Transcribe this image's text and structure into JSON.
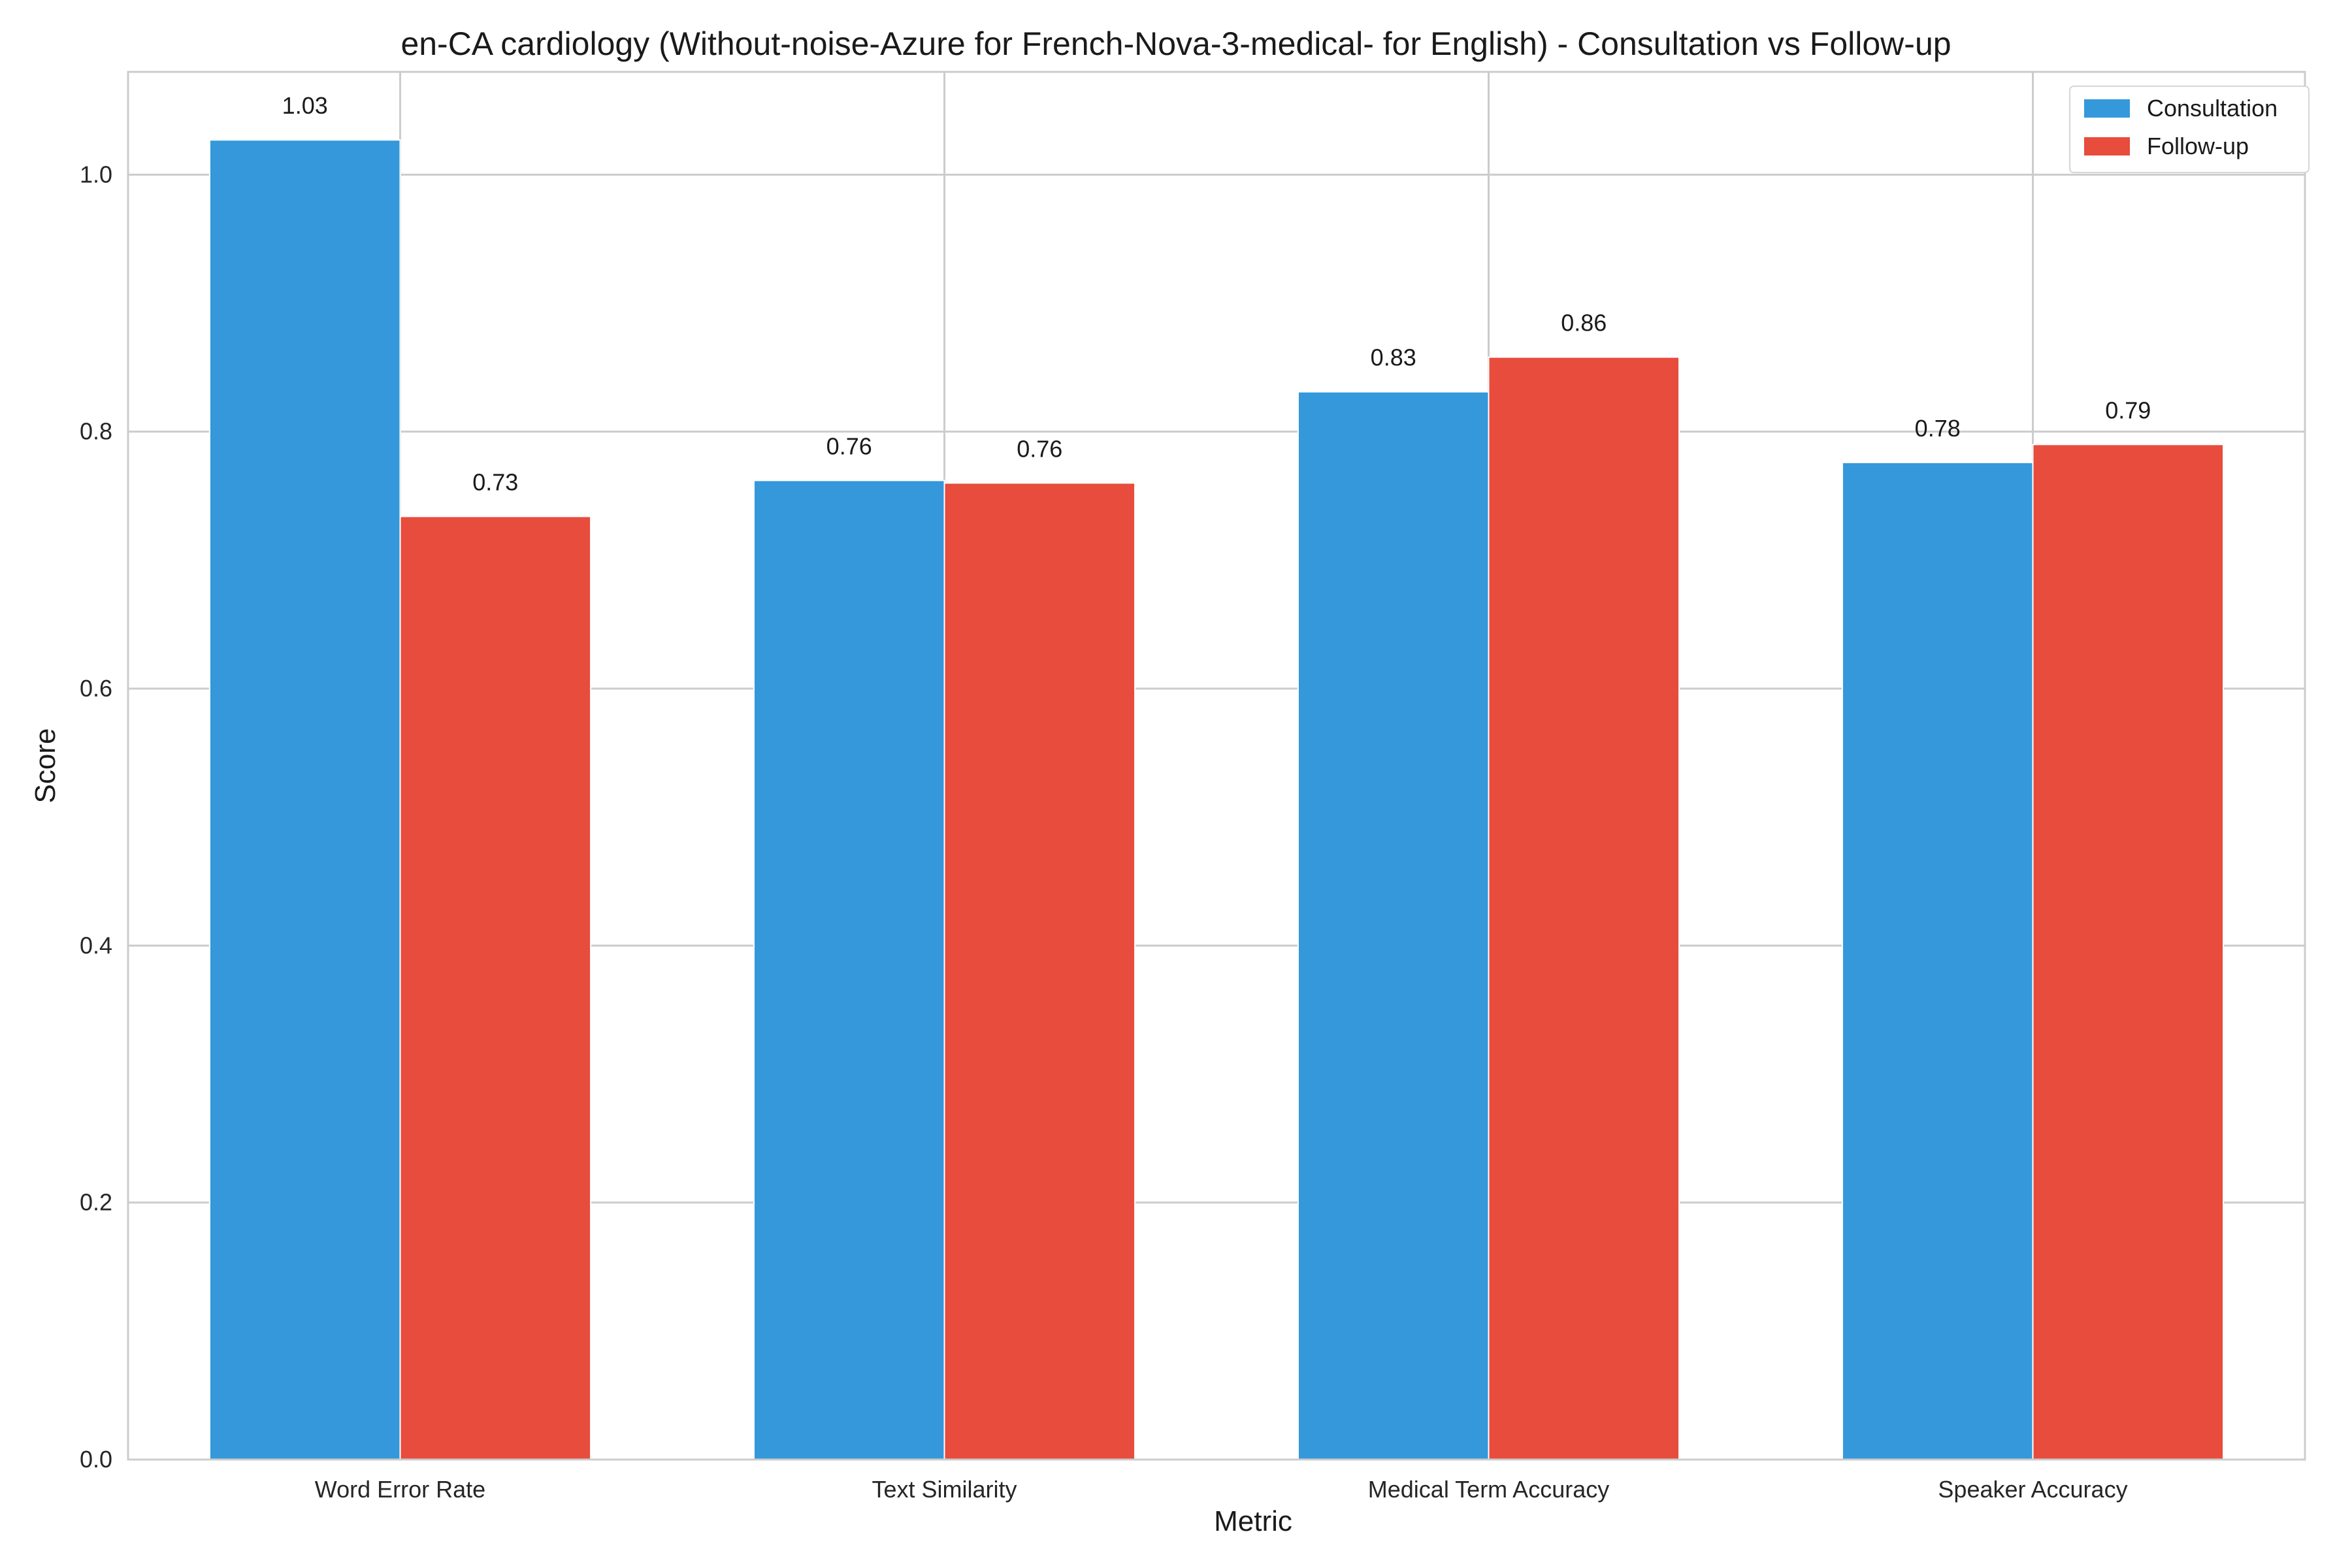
{
  "chart_data": {
    "type": "bar",
    "title": "en-CA cardiology (Without-noise-Azure for French-Nova-3-medical- for English) - Consultation vs Follow-up",
    "xlabel": "Metric",
    "ylabel": "Score",
    "categories": [
      "Word Error Rate",
      "Text Similarity",
      "Medical Term Accuracy",
      "Speaker Accuracy"
    ],
    "series": [
      {
        "name": "Consultation",
        "color": "#3498db",
        "values": [
          1.027,
          0.762,
          0.831,
          0.776
        ],
        "labels": [
          "1.03",
          "0.76",
          "0.83",
          "0.78"
        ]
      },
      {
        "name": "Follow-up",
        "color": "#e74c3c",
        "values": [
          0.734,
          0.76,
          0.858,
          0.79
        ],
        "labels": [
          "0.73",
          "0.76",
          "0.86",
          "0.79"
        ]
      }
    ],
    "ylim": [
      0,
      1.08
    ],
    "yticks": [
      0.0,
      0.2,
      0.4,
      0.6,
      0.8,
      1.0
    ],
    "ytick_labels": [
      "0.0",
      "0.2",
      "0.4",
      "0.6",
      "0.8",
      "1.0"
    ],
    "grid": true,
    "legend_position": "top-right"
  }
}
